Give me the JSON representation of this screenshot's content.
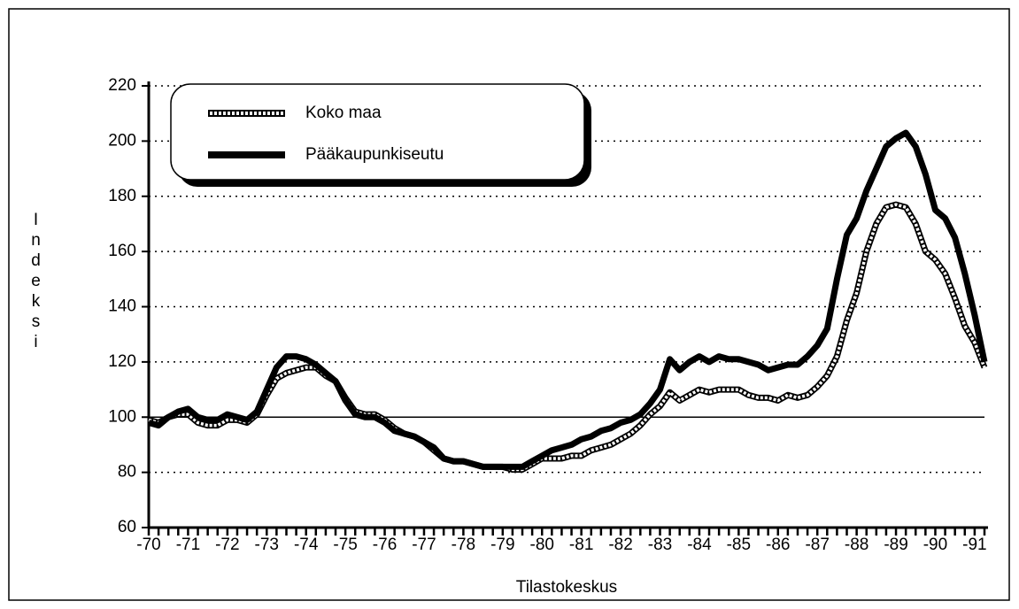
{
  "chart_data": {
    "type": "line",
    "y_label": "Indeksi",
    "source": "Tilastokeskus",
    "categories": [
      "-70",
      null,
      null,
      null,
      "-71",
      null,
      null,
      null,
      "-72",
      null,
      null,
      null,
      "-73",
      null,
      null,
      null,
      "-74",
      null,
      null,
      null,
      "-75",
      null,
      null,
      null,
      "-76",
      null,
      null,
      null,
      "-77",
      null,
      null,
      null,
      "-78",
      null,
      null,
      null,
      "-79",
      null,
      null,
      null,
      "-80",
      null,
      null,
      null,
      "-81",
      null,
      null,
      null,
      "-82",
      null,
      null,
      null,
      "-83",
      null,
      null,
      null,
      "-84",
      null,
      null,
      null,
      "-85",
      null,
      null,
      null,
      "-86",
      null,
      null,
      null,
      "-87",
      null,
      null,
      null,
      "-88",
      null,
      null,
      null,
      "-89",
      null,
      null,
      null,
      "-90",
      null,
      null,
      null,
      "-91",
      null
    ],
    "series": [
      {
        "name": "Koko maa",
        "color": "#000000",
        "style": "hatched",
        "values": [
          99,
          98,
          100,
          101,
          101,
          98,
          97,
          97,
          99,
          99,
          98,
          101,
          108,
          114,
          116,
          117,
          118,
          118,
          115,
          113,
          107,
          102,
          101,
          101,
          99,
          96,
          94,
          93,
          91,
          88,
          85,
          84,
          84,
          83,
          82,
          82,
          82,
          81,
          81,
          83,
          85,
          85,
          85,
          86,
          86,
          88,
          89,
          90,
          92,
          94,
          97,
          101,
          104,
          109,
          106,
          108,
          110,
          109,
          110,
          110,
          110,
          108,
          107,
          107,
          106,
          108,
          107,
          108,
          111,
          115,
          122,
          135,
          145,
          160,
          170,
          176,
          177,
          176,
          170,
          160,
          157,
          152,
          143,
          133,
          127,
          118
        ]
      },
      {
        "name": "Pääkaupunkiseutu",
        "color": "#000000",
        "style": "solid",
        "values": [
          98,
          97,
          100,
          102,
          103,
          100,
          99,
          99,
          101,
          100,
          99,
          102,
          110,
          118,
          122,
          122,
          121,
          119,
          116,
          113,
          106,
          101,
          100,
          100,
          98,
          95,
          94,
          93,
          91,
          89,
          85,
          84,
          84,
          83,
          82,
          82,
          82,
          82,
          82,
          84,
          86,
          88,
          89,
          90,
          92,
          93,
          95,
          96,
          98,
          99,
          101,
          105,
          110,
          121,
          117,
          120,
          122,
          120,
          122,
          121,
          121,
          120,
          119,
          117,
          118,
          119,
          119,
          122,
          126,
          132,
          150,
          166,
          172,
          182,
          190,
          198,
          201,
          203,
          198,
          188,
          175,
          172,
          165,
          152,
          137,
          120
        ]
      }
    ],
    "ylim": [
      60,
      220
    ],
    "yticks": [
      60,
      80,
      100,
      120,
      140,
      160,
      180,
      200,
      220
    ],
    "grid": true,
    "hline": 100,
    "legend": "top-left"
  }
}
